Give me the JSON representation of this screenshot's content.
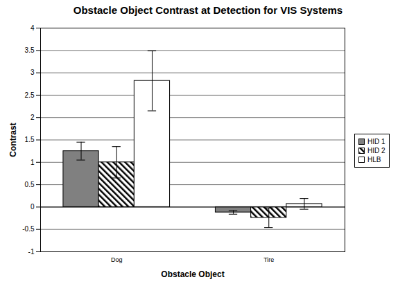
{
  "chart_data": {
    "type": "bar",
    "title": "Obstacle Object Contrast at Detection for VIS Systems",
    "x_label": "Obstacle Object",
    "y_label": "Contrast",
    "categories": [
      "Dog",
      "Tire"
    ],
    "series": [
      {
        "name": "HID 1",
        "color": "#808080",
        "values": [
          1.25,
          -0.12
        ],
        "errors": [
          0.2,
          0.04
        ]
      },
      {
        "name": "HID 2",
        "color": "#000000",
        "values": [
          1.0,
          -0.24
        ],
        "errors": [
          0.35,
          0.22
        ]
      },
      {
        "name": "HLB",
        "color": "#ffffff",
        "values": [
          2.82,
          0.07
        ],
        "errors": [
          0.67,
          0.12
        ]
      }
    ],
    "ylim": [
      -1,
      4
    ],
    "yticks": [
      -1,
      -0.5,
      0,
      0.5,
      1,
      1.5,
      2,
      2.5,
      3,
      3.5,
      4
    ],
    "grid": true,
    "legend": "right"
  }
}
